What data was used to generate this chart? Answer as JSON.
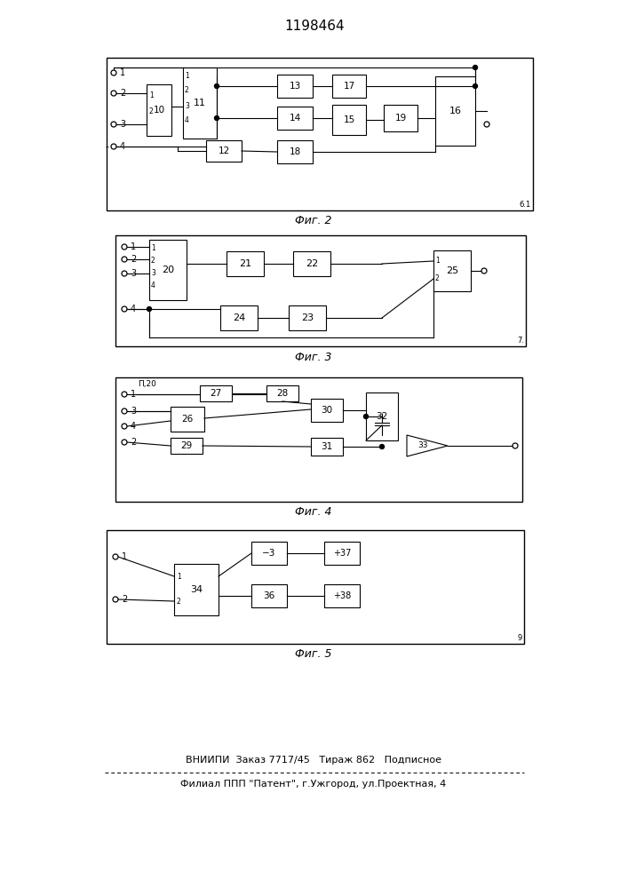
{
  "title": "1198464",
  "footer_line1": "ВНИИПИ  Заказ 7717/45   Тираж 862   Подписное",
  "footer_line2": "Филиал ППП \"Патент\", г.Ужгород, ул.Проектная, 4",
  "fig2_label": "Фиг. 2",
  "fig3_label": "Фиг. 3",
  "fig4_label": "Фиг. 4",
  "fig5_label": "Фиг. 5"
}
